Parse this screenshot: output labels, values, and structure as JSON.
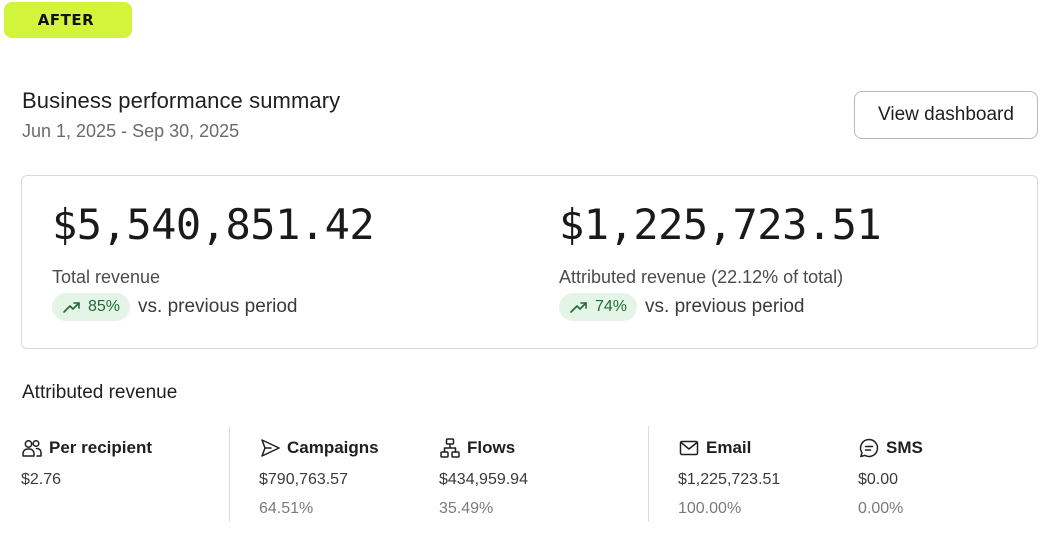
{
  "tag": "AFTER",
  "header": {
    "title": "Business performance summary",
    "date_range": "Jun 1, 2025 - Sep 30, 2025",
    "view_button": "View dashboard"
  },
  "summary": {
    "total": {
      "value": "$5,540,851.42",
      "label": "Total revenue",
      "delta": "85%",
      "delta_icon": "trending-up-icon",
      "comparison": "vs. previous period"
    },
    "attributed": {
      "value": "$1,225,723.51",
      "label": "Attributed revenue (22.12% of total)",
      "delta": "74%",
      "delta_icon": "trending-up-icon",
      "comparison": "vs. previous period"
    }
  },
  "attributed_section": {
    "title": "Attributed revenue",
    "stats": [
      {
        "label": "Per recipient",
        "icon": "users-icon",
        "value": "$2.76",
        "percent": ""
      },
      {
        "label": "Campaigns",
        "icon": "send-icon",
        "value": "$790,763.57",
        "percent": "64.51%"
      },
      {
        "label": "Flows",
        "icon": "flow-icon",
        "value": "$434,959.94",
        "percent": "35.49%"
      },
      {
        "label": "Email",
        "icon": "mail-icon",
        "value": "$1,225,723.51",
        "percent": "100.00%"
      },
      {
        "label": "SMS",
        "icon": "chat-icon",
        "value": "$0.00",
        "percent": "0.00%"
      }
    ]
  },
  "colors": {
    "tag_bg": "#d2f53c",
    "positive_pill_bg": "#e4f5e7",
    "positive_text": "#1e6b34"
  }
}
